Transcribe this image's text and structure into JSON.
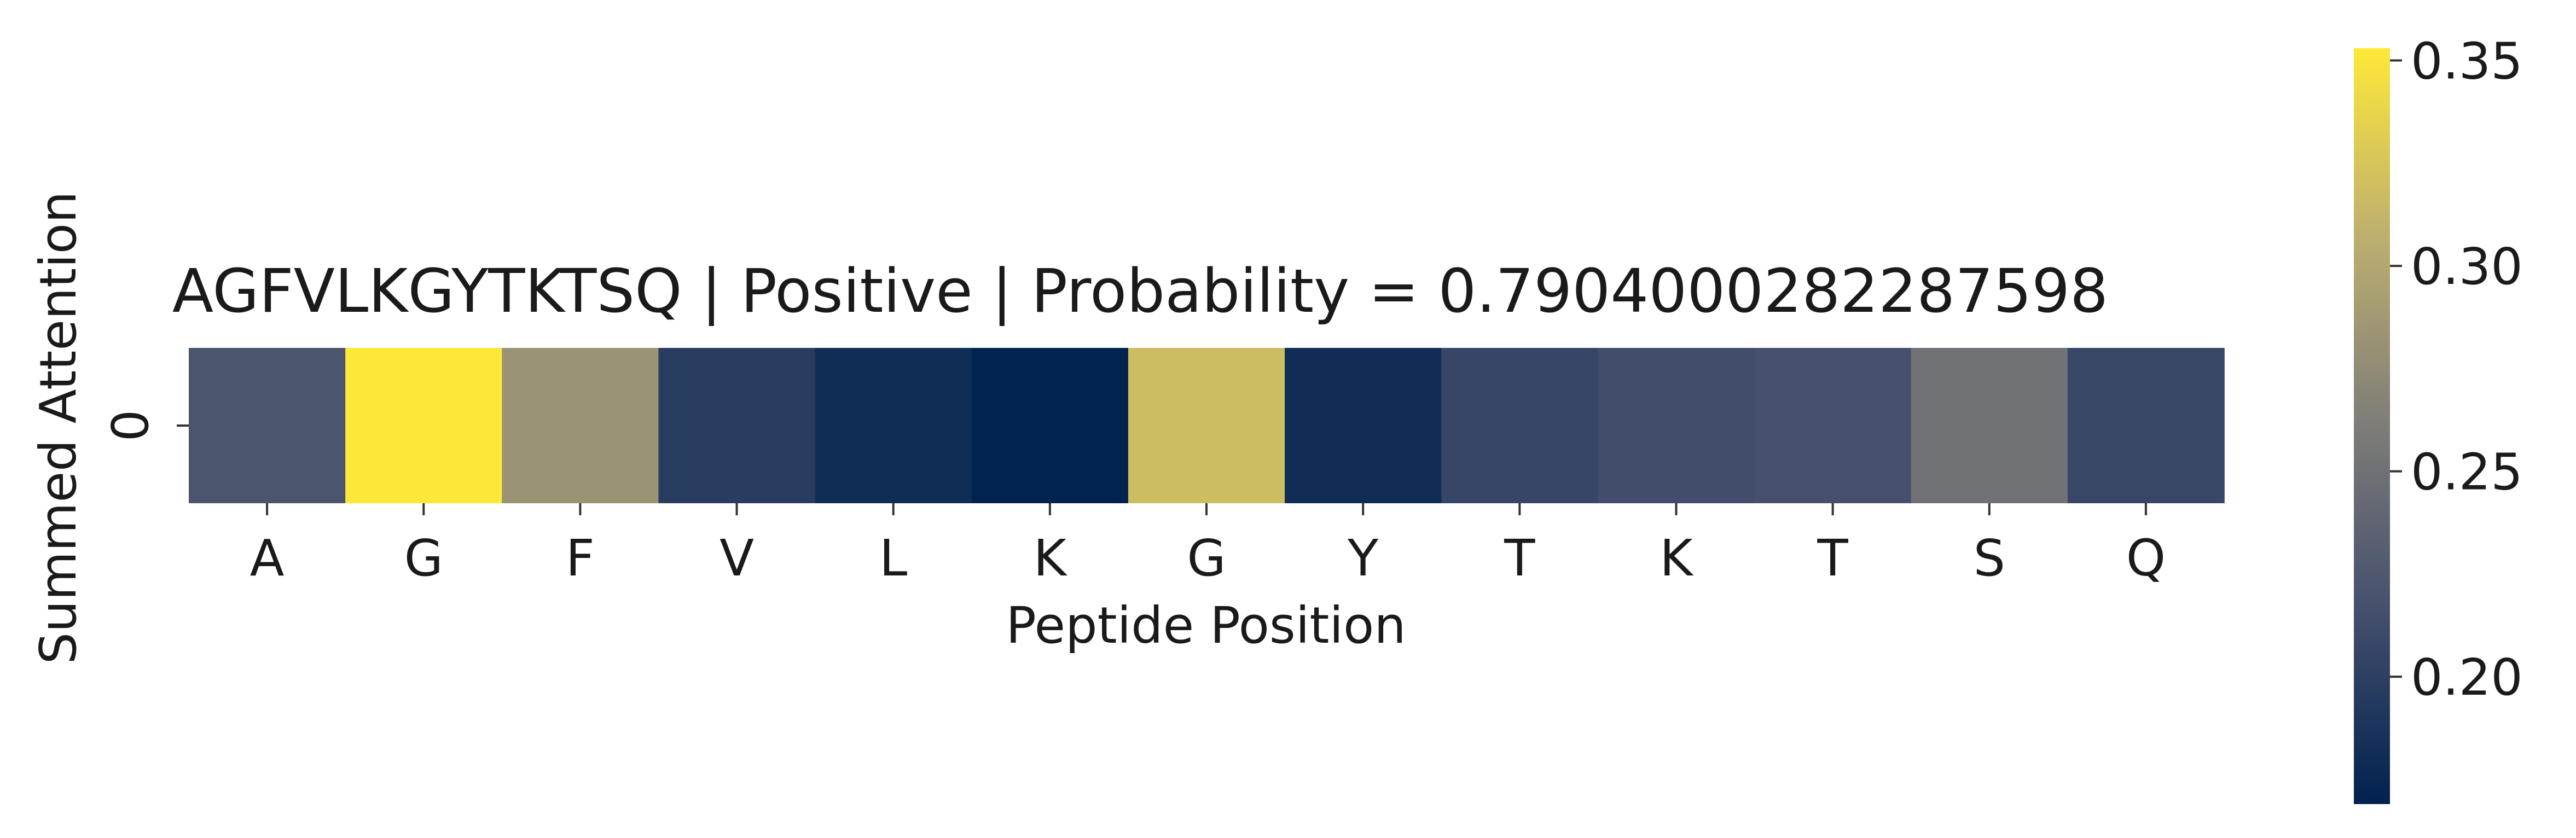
{
  "chart_data": {
    "type": "heatmap",
    "title": "AGFVLKGYTKTSQ | Positive | Probability = 0.7904000282287598",
    "xlabel": "Peptide Position",
    "ylabel": "Summed Attention",
    "x_categories": [
      "A",
      "G",
      "F",
      "V",
      "L",
      "K",
      "G",
      "Y",
      "T",
      "K",
      "T",
      "S",
      "Q"
    ],
    "y_categories": [
      "0"
    ],
    "values": [
      [
        0.222,
        0.352,
        0.282,
        0.197,
        0.18,
        0.17,
        0.318,
        0.181,
        0.207,
        0.214,
        0.217,
        0.251,
        0.208
      ]
    ],
    "colormap": "cividis",
    "colorbar": {
      "min": 0.169,
      "max": 0.353,
      "ticks": [
        0.2,
        0.25,
        0.3,
        0.35
      ],
      "tick_labels": [
        "0.20",
        "0.25",
        "0.30",
        "0.35"
      ]
    },
    "grid": false,
    "legend": "colorbar-right"
  }
}
